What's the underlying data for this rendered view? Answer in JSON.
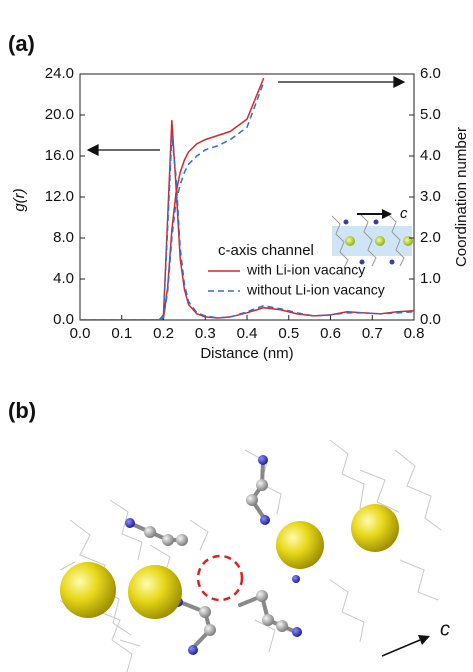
{
  "panel_labels": {
    "a": "(a)",
    "b": "(b)"
  },
  "chart_data": {
    "type": "line",
    "x_label": "Distance (nm)",
    "y_label": "g(r)",
    "y2_label": "Coordination number",
    "legend_title": "c-axis channel",
    "inset_label": "c",
    "x": [
      0,
      0.05,
      0.1,
      0.15,
      0.19,
      0.2,
      0.21,
      0.22,
      0.23,
      0.24,
      0.25,
      0.26,
      0.28,
      0.3,
      0.33,
      0.36,
      0.4,
      0.44,
      0.48,
      0.52,
      0.56,
      0.6,
      0.64,
      0.68,
      0.72,
      0.76,
      0.8
    ],
    "series": [
      {
        "name": "with Li-ion vacancy",
        "color": "#d62728",
        "dash": false,
        "values": [
          0,
          0,
          0,
          0,
          0,
          0.5,
          10,
          19.5,
          13,
          6,
          3,
          1.5,
          0.6,
          0.3,
          0.2,
          0.3,
          0.7,
          1.2,
          1.0,
          0.6,
          0.4,
          0.5,
          0.8,
          0.7,
          0.6,
          0.8,
          0.9
        ]
      },
      {
        "name": "without Li-ion vacancy",
        "color": "#2f6fd0",
        "dash": true,
        "values": [
          0,
          0,
          0,
          0,
          0,
          0.5,
          9,
          18,
          14,
          7,
          3.5,
          1.8,
          0.7,
          0.4,
          0.2,
          0.3,
          0.8,
          1.4,
          1.1,
          0.7,
          0.4,
          0.5,
          0.7,
          0.7,
          0.6,
          0.7,
          0.8
        ]
      },
      {
        "color": "#d62728",
        "dash": false,
        "axis": "y2",
        "values": [
          0,
          0,
          0,
          0,
          0,
          0.05,
          0.8,
          2.2,
          3.1,
          3.6,
          3.9,
          4.1,
          4.3,
          4.4,
          4.5,
          4.6,
          4.9,
          5.9,
          null,
          null,
          null,
          null,
          null,
          null,
          null,
          null,
          null
        ]
      },
      {
        "color": "#2f6fd0",
        "dash": true,
        "axis": "y2",
        "values": [
          0,
          0,
          0,
          0,
          0,
          0.05,
          0.7,
          2.0,
          2.9,
          3.3,
          3.6,
          3.8,
          4.0,
          4.15,
          4.25,
          4.4,
          4.7,
          5.8,
          null,
          null,
          null,
          null,
          null,
          null,
          null,
          null,
          null
        ]
      }
    ],
    "xlim": [
      0,
      0.8
    ],
    "xticks": [
      {
        "value": 0,
        "label": "0.0"
      },
      {
        "value": 0.1,
        "label": "0.1"
      },
      {
        "value": 0.2,
        "label": "0.2"
      },
      {
        "value": 0.3,
        "label": "0.3"
      },
      {
        "value": 0.4,
        "label": "0.4"
      },
      {
        "value": 0.5,
        "label": "0.5"
      },
      {
        "value": 0.6,
        "label": "0.6"
      },
      {
        "value": 0.7,
        "label": "0.7"
      },
      {
        "value": 0.8,
        "label": "0.8"
      }
    ],
    "ylim": [
      0,
      24
    ],
    "yticks": [
      {
        "value": 0,
        "label": "0.0"
      },
      {
        "value": 4,
        "label": "4.0"
      },
      {
        "value": 8,
        "label": "8.0"
      },
      {
        "value": 12,
        "label": "12.0"
      },
      {
        "value": 16,
        "label": "16.0"
      },
      {
        "value": 20,
        "label": "20.0"
      },
      {
        "value": 24,
        "label": "24.0"
      }
    ],
    "y2lim": [
      0,
      6
    ],
    "y2ticks": [
      {
        "value": 0,
        "label": "0.0"
      },
      {
        "value": 1,
        "label": "1.0"
      },
      {
        "value": 2,
        "label": "2.0"
      },
      {
        "value": 3,
        "label": "3.0"
      },
      {
        "value": 4,
        "label": "4.0"
      },
      {
        "value": 5,
        "label": "5.0"
      },
      {
        "value": 6,
        "label": "6.0"
      }
    ]
  },
  "structure_b": {
    "axis_label": "c"
  }
}
